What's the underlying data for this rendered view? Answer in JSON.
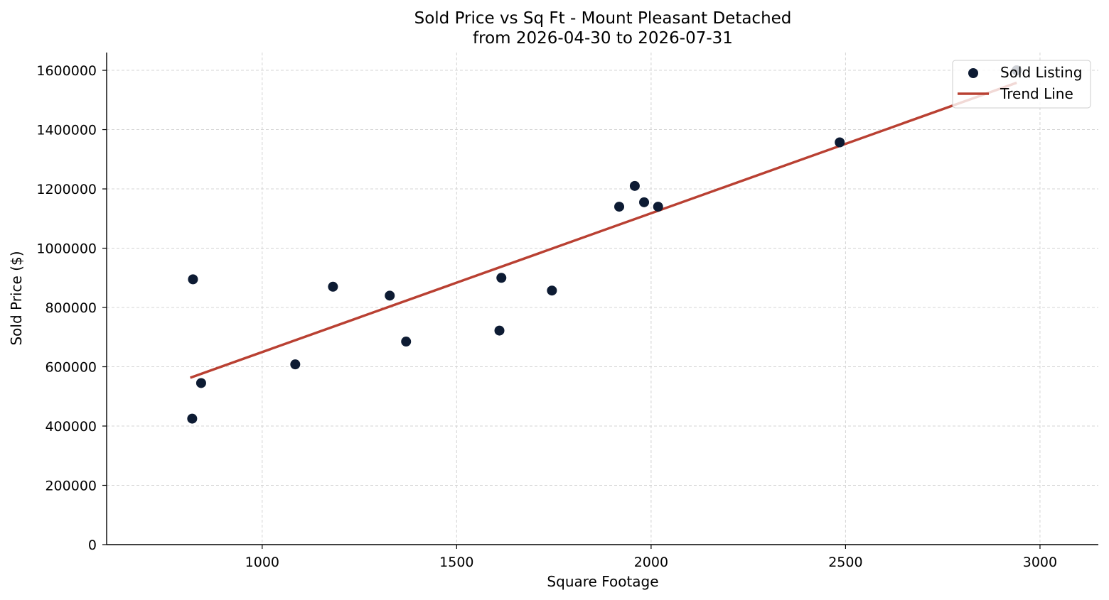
{
  "chart_data": {
    "type": "scatter",
    "title": "Sold Price vs Sq Ft - Mount Pleasant Detached",
    "subtitle": "from 2026-04-30 to 2026-07-31",
    "xlabel": "Square Footage",
    "ylabel": "Sold Price ($)",
    "xlim": [
      600,
      3150
    ],
    "ylim": [
      0,
      1660000
    ],
    "xticks": [
      1000,
      1500,
      2000,
      2500,
      3000
    ],
    "yticks": [
      0,
      200000,
      400000,
      600000,
      800000,
      1000000,
      1200000,
      1400000,
      1600000
    ],
    "grid": true,
    "legend_position": "top-right",
    "series": [
      {
        "name": "Sold Listing",
        "kind": "scatter",
        "color": "#0d1b33",
        "points": [
          {
            "x": 820,
            "y": 425000
          },
          {
            "x": 822,
            "y": 895000
          },
          {
            "x": 843,
            "y": 545000
          },
          {
            "x": 1085,
            "y": 608000
          },
          {
            "x": 1182,
            "y": 870000
          },
          {
            "x": 1328,
            "y": 840000
          },
          {
            "x": 1370,
            "y": 685000
          },
          {
            "x": 1610,
            "y": 722000
          },
          {
            "x": 1615,
            "y": 900000
          },
          {
            "x": 1745,
            "y": 857000
          },
          {
            "x": 1918,
            "y": 1140000
          },
          {
            "x": 1958,
            "y": 1210000
          },
          {
            "x": 1982,
            "y": 1155000
          },
          {
            "x": 2018,
            "y": 1140000
          },
          {
            "x": 2485,
            "y": 1357000
          },
          {
            "x": 2940,
            "y": 1600000
          }
        ]
      },
      {
        "name": "Trend Line",
        "kind": "line",
        "color": "#b94032",
        "points": [
          {
            "x": 815,
            "y": 563000
          },
          {
            "x": 2940,
            "y": 1558000
          }
        ]
      }
    ]
  }
}
